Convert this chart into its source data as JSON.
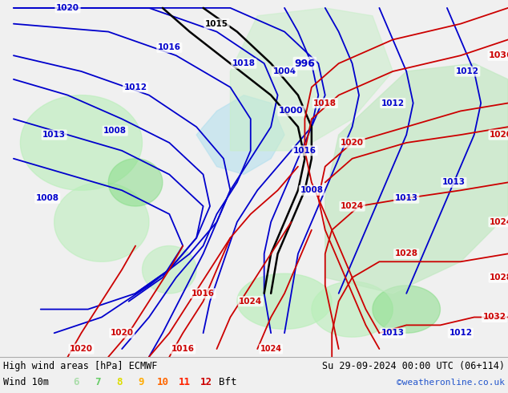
{
  "title_left": "High wind areas [hPa] ECMWF",
  "title_right": "Su 29-09-2024 00:00 UTC (06+114)",
  "subtitle_left": "Wind 10m",
  "subtitle_right": "©weatheronline.co.uk",
  "bft_labels": [
    "6",
    "7",
    "8",
    "9",
    "10",
    "11",
    "12",
    "Bft"
  ],
  "bft_colors": [
    "#aaddaa",
    "#66cc66",
    "#dddd00",
    "#ffaa00",
    "#ff6600",
    "#ff2200",
    "#cc0000",
    "#000000"
  ],
  "map_bg": "#d0e8d0",
  "info_bg": "#f0f0f0",
  "border_color": "#888888",
  "blue": "#0000cc",
  "red": "#cc0000",
  "black": "#000000",
  "figsize": [
    6.34,
    4.9
  ],
  "dpi": 100
}
